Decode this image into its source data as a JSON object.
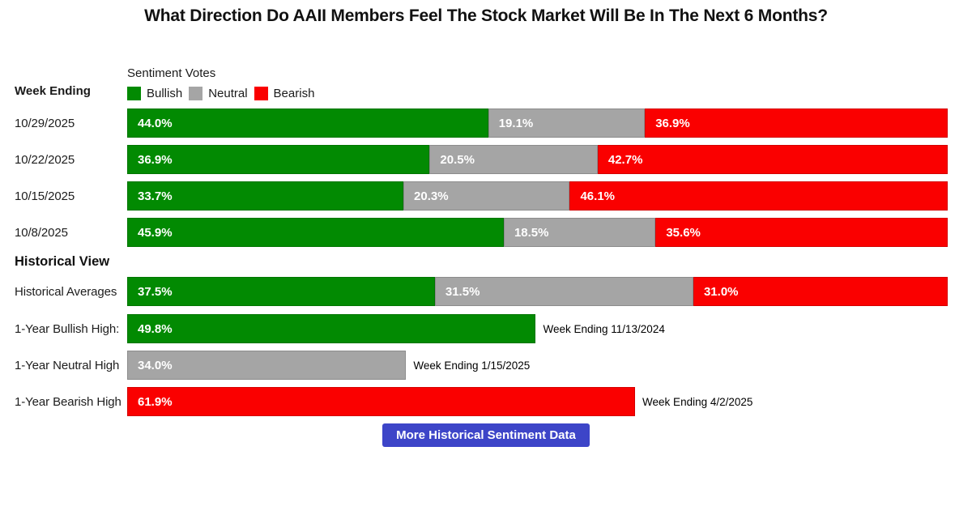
{
  "title": "What Direction Do AAII Members Feel The Stock Market Will Be In The Next 6 Months?",
  "colors": {
    "bullish": "#028a02",
    "neutral": "#a5a5a5",
    "bearish": "#fa0000",
    "button_bg": "#3d45c8",
    "bar_text": "#ffffff"
  },
  "left_header": "Week Ending",
  "legend": {
    "title": "Sentiment Votes",
    "entries": [
      {
        "label": "Bullish",
        "color_key": "bullish"
      },
      {
        "label": "Neutral",
        "color_key": "neutral"
      },
      {
        "label": "Bearish",
        "color_key": "bearish"
      }
    ]
  },
  "chart_data": {
    "type": "bar",
    "orientation": "horizontal-stacked",
    "xlim": [
      0,
      100
    ],
    "grid": false,
    "legend_position": "top-left",
    "categories": [
      "10/29/2025",
      "10/22/2025",
      "10/15/2025",
      "10/8/2025"
    ],
    "series": [
      {
        "name": "Bullish",
        "color_key": "bullish",
        "values": [
          44.0,
          36.9,
          33.7,
          45.9
        ]
      },
      {
        "name": "Neutral",
        "color_key": "neutral",
        "values": [
          19.1,
          20.5,
          20.3,
          18.5
        ]
      },
      {
        "name": "Bearish",
        "color_key": "bearish",
        "values": [
          36.9,
          42.7,
          46.1,
          35.6
        ]
      }
    ],
    "historical": {
      "heading": "Historical View",
      "averages": {
        "label": "Historical Averages",
        "values": [
          {
            "color_key": "bullish",
            "value": 37.5
          },
          {
            "color_key": "neutral",
            "value": 31.5
          },
          {
            "color_key": "bearish",
            "value": 31.0
          }
        ]
      },
      "extremes": [
        {
          "label": "1-Year Bullish High:",
          "color_key": "bullish",
          "value": 49.8,
          "annotation": "Week Ending 11/13/2024"
        },
        {
          "label": "1-Year Neutral High",
          "color_key": "neutral",
          "value": 34.0,
          "annotation": "Week Ending 1/15/2025"
        },
        {
          "label": "1-Year Bearish High",
          "color_key": "bearish",
          "value": 61.9,
          "annotation": "Week Ending 4/2/2025"
        }
      ]
    }
  },
  "button": {
    "label": "More Historical Sentiment Data"
  }
}
